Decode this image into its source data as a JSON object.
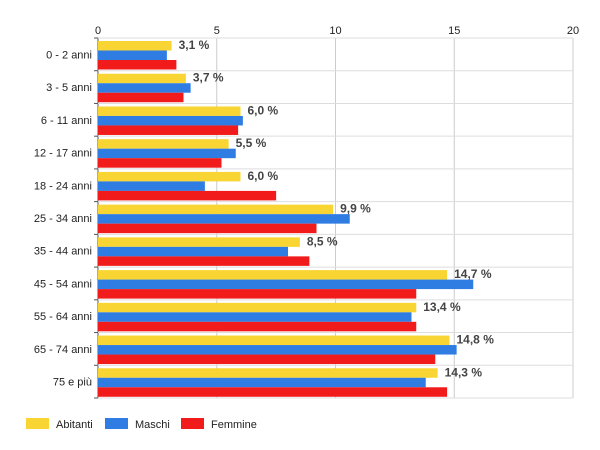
{
  "chart_data": {
    "type": "bar",
    "orientation": "horizontal",
    "categories": [
      "0 - 2 anni",
      "3 - 5 anni",
      "6 - 11 anni",
      "12 - 17 anni",
      "18 - 24 anni",
      "25 - 34 anni",
      "35 - 44 anni",
      "45 - 54 anni",
      "55 - 64 anni",
      "65 - 74 anni",
      "75 e più"
    ],
    "series": [
      {
        "name": "Abitanti",
        "color": "#f9d534",
        "values": [
          3.1,
          3.7,
          6.0,
          5.5,
          6.0,
          9.9,
          8.5,
          14.7,
          13.4,
          14.8,
          14.3
        ]
      },
      {
        "name": "Maschi",
        "color": "#2f7de2",
        "values": [
          2.9,
          3.9,
          6.1,
          5.8,
          4.5,
          10.6,
          8.0,
          15.8,
          13.2,
          15.1,
          13.8
        ]
      },
      {
        "name": "Femmine",
        "color": "#f21b1b",
        "values": [
          3.3,
          3.6,
          5.9,
          5.2,
          7.5,
          9.2,
          8.9,
          13.4,
          13.4,
          14.2,
          14.7
        ]
      }
    ],
    "data_labels": [
      "3,1 %",
      "3,7 %",
      "6,0 %",
      "5,5 %",
      "6,0 %",
      "9,9 %",
      "8,5 %",
      "14,7 %",
      "13,4 %",
      "14,8 %",
      "14,3 %"
    ],
    "xlim": [
      0,
      20
    ],
    "xticks": [
      0,
      5,
      10,
      15,
      20
    ],
    "xtick_labels": [
      "0",
      "5",
      "10",
      "15",
      "20"
    ],
    "x_axis_position": "top",
    "grid": true,
    "legend_position": "bottom-left"
  }
}
